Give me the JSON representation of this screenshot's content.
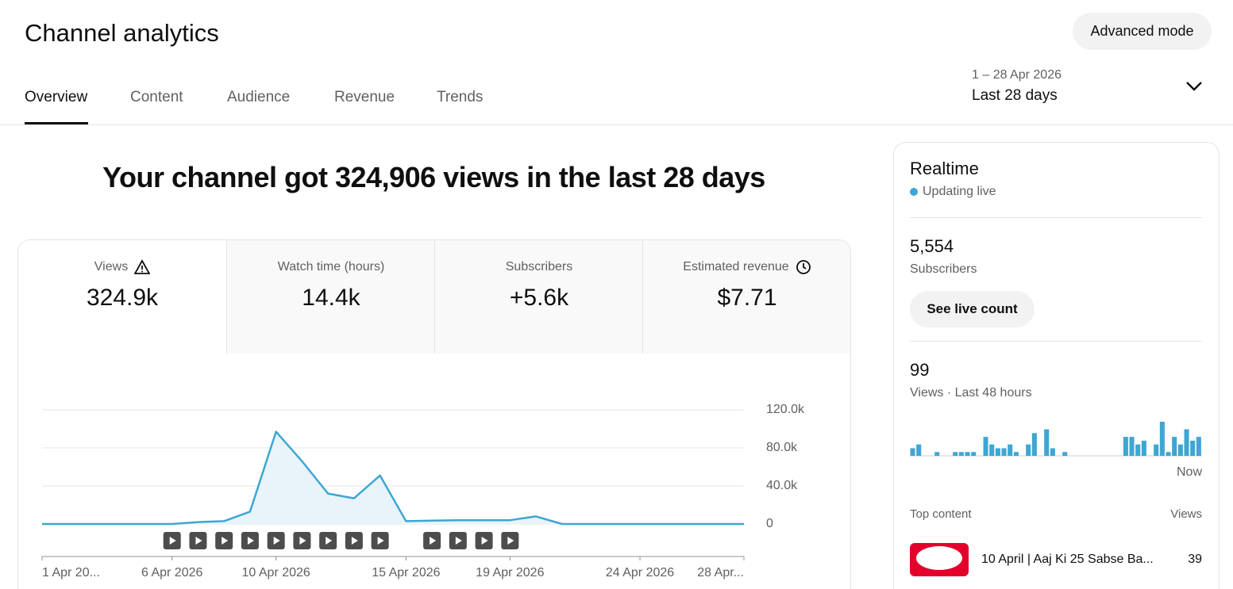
{
  "header": {
    "title": "Channel analytics",
    "advanced_button": "Advanced mode"
  },
  "tabs": [
    "Overview",
    "Content",
    "Audience",
    "Revenue",
    "Trends"
  ],
  "date_range": {
    "range": "1 – 28 Apr 2026",
    "label": "Last 28 days"
  },
  "headline": "Your channel got 324,906 views in the last 28 days",
  "metrics": [
    {
      "label": "Views",
      "value": "324.9k"
    },
    {
      "label": "Watch time (hours)",
      "value": "14.4k"
    },
    {
      "label": "Subscribers",
      "value": "+5.6k"
    },
    {
      "label": "Estimated revenue",
      "value": "$7.71"
    }
  ],
  "realtime": {
    "title": "Realtime",
    "status": "Updating live",
    "subscribers": {
      "value": "5,554",
      "label": "Subscribers"
    },
    "live_button": "See live count",
    "views": {
      "value": "99",
      "label": "Views · Last 48 hours"
    },
    "now_label": "Now",
    "top_content": {
      "title": "Top content",
      "views_header": "Views",
      "items": [
        {
          "title": "10 April | Aaj Ki 25 Sabse Ba...",
          "views": "39"
        }
      ]
    }
  },
  "chart_data": [
    {
      "type": "line",
      "categories": [
        "1 Apr 20...",
        null,
        null,
        null,
        null,
        "6 Apr 2026",
        null,
        null,
        null,
        "10 Apr 2026",
        null,
        null,
        null,
        null,
        "15 Apr 2026",
        null,
        null,
        null,
        "19 Apr 2026",
        null,
        null,
        null,
        null,
        "24 Apr 2026",
        null,
        null,
        null,
        "28 Apr..."
      ],
      "values": [
        0,
        0,
        0,
        0,
        0,
        0,
        2000,
        3000,
        13000,
        97000,
        66000,
        32000,
        27000,
        51000,
        3000,
        3500,
        4000,
        4000,
        4000,
        8000,
        0,
        0,
        0,
        0,
        0,
        0,
        0,
        0
      ],
      "color": "#3ea6d2",
      "fill_color": "#e8f4fa",
      "ylim": [
        0,
        120000
      ],
      "yticks": [
        0,
        {
          "value": 40000,
          "label": "40.0k"
        },
        {
          "value": 80000,
          "label": "80.0k"
        },
        {
          "value": 120000,
          "label": "120.0k"
        }
      ],
      "grid": true
    },
    {
      "type": "bar",
      "values": [
        2,
        3,
        0,
        0,
        1,
        0,
        0,
        1,
        1,
        1,
        1,
        0,
        5,
        3,
        2,
        2,
        3,
        1,
        0,
        3,
        6,
        0,
        7,
        2,
        0,
        1,
        0,
        0,
        0,
        0,
        0,
        0,
        0,
        0,
        0,
        5,
        5,
        3,
        4,
        0,
        3,
        9,
        1,
        5,
        3,
        7,
        4,
        5
      ],
      "color": "#3ea6d2"
    }
  ]
}
